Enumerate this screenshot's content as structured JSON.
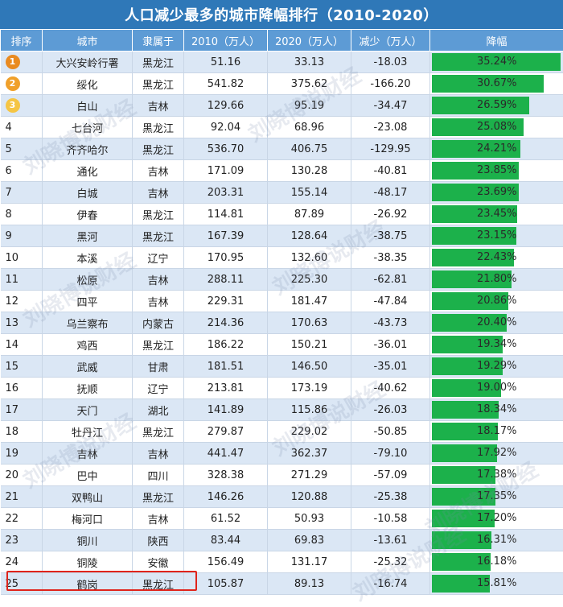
{
  "title": "人口减少最多的城市降幅排行（2010-2020）",
  "watermark_text": "刘晓博说财经",
  "colors": {
    "header": "#2f78b8",
    "subheader": "#5d9bd5",
    "bar": "#1cb14b",
    "medal_gold": "#e98a20",
    "medal_orange": "#f0a02a",
    "medal_yellow": "#f5c544",
    "highlight": "#e0241b"
  },
  "chart_data": {
    "type": "table",
    "columns": [
      "排序",
      "城市",
      "隶属于",
      "2010（万人）",
      "2020（万人）",
      "减少（万人）",
      "降幅"
    ],
    "rows": [
      {
        "rank": "1",
        "city": "大兴安岭行署",
        "province": "黑龙江",
        "y2010": "51.16",
        "y2020": "33.13",
        "change": "-18.03",
        "drop": "35.24%",
        "drop_value": 35.24
      },
      {
        "rank": "2",
        "city": "绥化",
        "province": "黑龙江",
        "y2010": "541.82",
        "y2020": "375.62",
        "change": "-166.20",
        "drop": "30.67%",
        "drop_value": 30.67
      },
      {
        "rank": "3",
        "city": "白山",
        "province": "吉林",
        "y2010": "129.66",
        "y2020": "95.19",
        "change": "-34.47",
        "drop": "26.59%",
        "drop_value": 26.59
      },
      {
        "rank": "4",
        "city": "七台河",
        "province": "黑龙江",
        "y2010": "92.04",
        "y2020": "68.96",
        "change": "-23.08",
        "drop": "25.08%",
        "drop_value": 25.08
      },
      {
        "rank": "5",
        "city": "齐齐哈尔",
        "province": "黑龙江",
        "y2010": "536.70",
        "y2020": "406.75",
        "change": "-129.95",
        "drop": "24.21%",
        "drop_value": 24.21
      },
      {
        "rank": "6",
        "city": "通化",
        "province": "吉林",
        "y2010": "171.09",
        "y2020": "130.28",
        "change": "-40.81",
        "drop": "23.85%",
        "drop_value": 23.85
      },
      {
        "rank": "7",
        "city": "白城",
        "province": "吉林",
        "y2010": "203.31",
        "y2020": "155.14",
        "change": "-48.17",
        "drop": "23.69%",
        "drop_value": 23.69
      },
      {
        "rank": "8",
        "city": "伊春",
        "province": "黑龙江",
        "y2010": "114.81",
        "y2020": "87.89",
        "change": "-26.92",
        "drop": "23.45%",
        "drop_value": 23.45
      },
      {
        "rank": "9",
        "city": "黑河",
        "province": "黑龙江",
        "y2010": "167.39",
        "y2020": "128.64",
        "change": "-38.75",
        "drop": "23.15%",
        "drop_value": 23.15
      },
      {
        "rank": "10",
        "city": "本溪",
        "province": "辽宁",
        "y2010": "170.95",
        "y2020": "132.60",
        "change": "-38.35",
        "drop": "22.43%",
        "drop_value": 22.43
      },
      {
        "rank": "11",
        "city": "松原",
        "province": "吉林",
        "y2010": "288.11",
        "y2020": "225.30",
        "change": "-62.81",
        "drop": "21.80%",
        "drop_value": 21.8
      },
      {
        "rank": "12",
        "city": "四平",
        "province": "吉林",
        "y2010": "229.31",
        "y2020": "181.47",
        "change": "-47.84",
        "drop": "20.86%",
        "drop_value": 20.86
      },
      {
        "rank": "13",
        "city": "乌兰察布",
        "province": "内蒙古",
        "y2010": "214.36",
        "y2020": "170.63",
        "change": "-43.73",
        "drop": "20.40%",
        "drop_value": 20.4
      },
      {
        "rank": "14",
        "city": "鸡西",
        "province": "黑龙江",
        "y2010": "186.22",
        "y2020": "150.21",
        "change": "-36.01",
        "drop": "19.34%",
        "drop_value": 19.34
      },
      {
        "rank": "15",
        "city": "武威",
        "province": "甘肃",
        "y2010": "181.51",
        "y2020": "146.50",
        "change": "-35.01",
        "drop": "19.29%",
        "drop_value": 19.29
      },
      {
        "rank": "16",
        "city": "抚顺",
        "province": "辽宁",
        "y2010": "213.81",
        "y2020": "173.19",
        "change": "-40.62",
        "drop": "19.00%",
        "drop_value": 19.0
      },
      {
        "rank": "17",
        "city": "天门",
        "province": "湖北",
        "y2010": "141.89",
        "y2020": "115.86",
        "change": "-26.03",
        "drop": "18.34%",
        "drop_value": 18.34
      },
      {
        "rank": "18",
        "city": "牡丹江",
        "province": "黑龙江",
        "y2010": "279.87",
        "y2020": "229.02",
        "change": "-50.85",
        "drop": "18.17%",
        "drop_value": 18.17
      },
      {
        "rank": "19",
        "city": "吉林",
        "province": "吉林",
        "y2010": "441.47",
        "y2020": "362.37",
        "change": "-79.10",
        "drop": "17.92%",
        "drop_value": 17.92
      },
      {
        "rank": "20",
        "city": "巴中",
        "province": "四川",
        "y2010": "328.38",
        "y2020": "271.29",
        "change": "-57.09",
        "drop": "17.38%",
        "drop_value": 17.38
      },
      {
        "rank": "21",
        "city": "双鸭山",
        "province": "黑龙江",
        "y2010": "146.26",
        "y2020": "120.88",
        "change": "-25.38",
        "drop": "17.35%",
        "drop_value": 17.35
      },
      {
        "rank": "22",
        "city": "梅河口",
        "province": "吉林",
        "y2010": "61.52",
        "y2020": "50.93",
        "change": "-10.58",
        "drop": "17.20%",
        "drop_value": 17.2
      },
      {
        "rank": "23",
        "city": "铜川",
        "province": "陕西",
        "y2010": "83.44",
        "y2020": "69.83",
        "change": "-13.61",
        "drop": "16.31%",
        "drop_value": 16.31
      },
      {
        "rank": "24",
        "city": "铜陵",
        "province": "安徽",
        "y2010": "156.49",
        "y2020": "131.17",
        "change": "-25.32",
        "drop": "16.18%",
        "drop_value": 16.18
      },
      {
        "rank": "25",
        "city": "鹤岗",
        "province": "黑龙江",
        "y2010": "105.87",
        "y2020": "89.13",
        "change": "-16.74",
        "drop": "15.81%",
        "drop_value": 15.81
      }
    ],
    "bar_max": 35.24,
    "highlighted_rank": "25"
  }
}
